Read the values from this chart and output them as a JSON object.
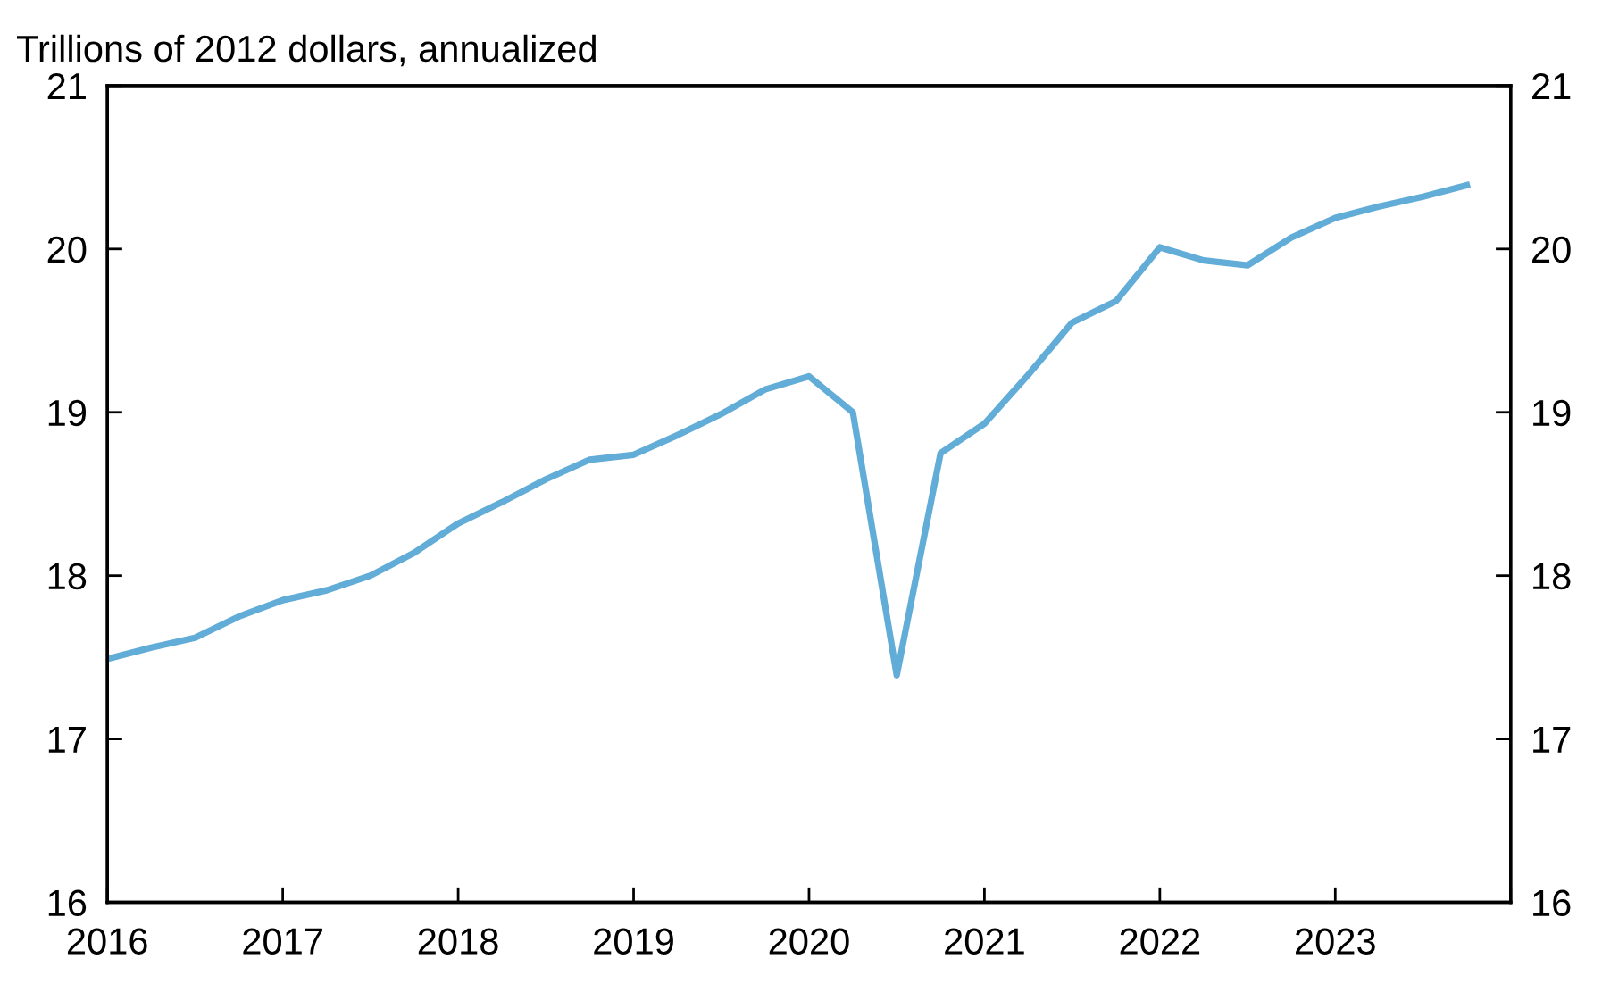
{
  "chart_data": {
    "type": "line",
    "ylabel": "Trillions of 2012 dollars, annualized",
    "x": [
      2016.0,
      2016.25,
      2016.5,
      2016.75,
      2017.0,
      2017.25,
      2017.5,
      2017.75,
      2018.0,
      2018.25,
      2018.5,
      2018.75,
      2019.0,
      2019.25,
      2019.5,
      2019.75,
      2020.0,
      2020.25,
      2020.5,
      2020.75,
      2021.0,
      2021.25,
      2021.5,
      2021.75,
      2022.0,
      2022.25,
      2022.5,
      2022.75,
      2023.0,
      2023.25,
      2023.5,
      2023.75
    ],
    "series": [
      {
        "color": "#62acd8",
        "values": [
          17.49,
          17.56,
          17.62,
          17.75,
          17.85,
          17.91,
          18.0,
          18.14,
          18.32,
          18.45,
          18.59,
          18.71,
          18.74,
          18.86,
          18.99,
          19.14,
          19.22,
          19.0,
          17.39,
          18.75,
          18.93,
          19.23,
          19.55,
          19.68,
          20.01,
          19.93,
          19.9,
          20.07,
          20.19,
          20.26,
          20.32,
          20.39
        ]
      }
    ],
    "xlim": [
      2016,
      2024
    ],
    "xticks": [
      2016,
      2017,
      2018,
      2019,
      2020,
      2021,
      2022,
      2023,
      {
        "value": 2024,
        "label": null
      }
    ],
    "ylim": [
      16,
      21
    ],
    "yticks": [
      16,
      17,
      18,
      19,
      20,
      21
    ],
    "y2lim": [
      16,
      21
    ],
    "y2ticks": [
      16,
      17,
      18,
      19,
      20,
      21
    ],
    "grid": false,
    "legend": false,
    "marker": "none",
    "line_style": "solid"
  }
}
